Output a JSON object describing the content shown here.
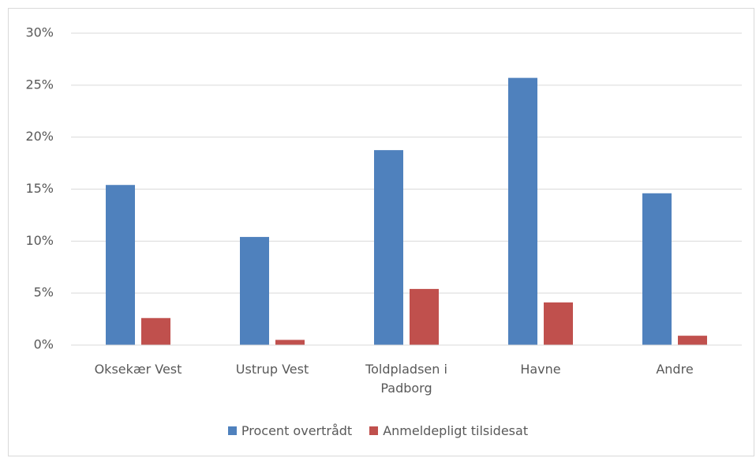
{
  "chart_data": {
    "type": "bar",
    "categories": [
      "Oksekær Vest",
      "Ustrup Vest",
      "Toldpladsen i Padborg",
      "Havne",
      "Andre"
    ],
    "series": [
      {
        "name": "Procent overtrådt",
        "color": "#4f81bd",
        "values": [
          15.4,
          10.4,
          18.75,
          25.7,
          14.6
        ]
      },
      {
        "name": "Anmeldepligt tilsidesat",
        "color": "#c0504d",
        "values": [
          2.6,
          0.5,
          5.4,
          4.1,
          0.9
        ]
      }
    ],
    "ylim": [
      0,
      30
    ],
    "yticks": [
      {
        "value": 0,
        "label": "0%"
      },
      {
        "value": 5,
        "label": "5%"
      },
      {
        "value": 10,
        "label": "10%"
      },
      {
        "value": 15,
        "label": "15%"
      },
      {
        "value": 20,
        "label": "20%"
      },
      {
        "value": 25,
        "label": "25%"
      },
      {
        "value": 30,
        "label": "30%"
      }
    ],
    "grid": true,
    "legend": "bottom"
  }
}
